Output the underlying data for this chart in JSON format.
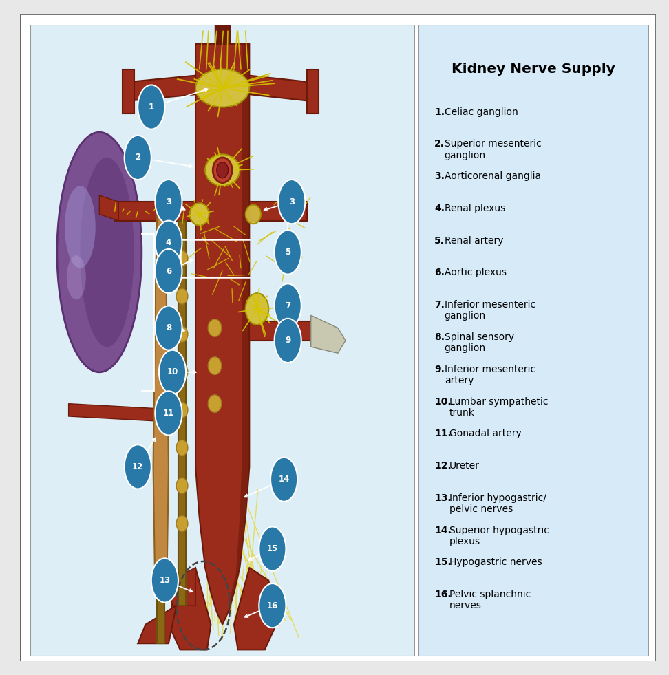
{
  "title": "Kidney Nerve Supply",
  "outer_bg": "#f0f0f0",
  "panel_bg": "#ddeef6",
  "legend_bg": "#d6eaf8",
  "label_circle_color": "#2878a8",
  "legend_items": [
    {
      "num": "1",
      "bold": "1.",
      "text": " Celiac ganglion"
    },
    {
      "num": "2",
      "bold": "2.",
      "text": "  Superior mesenteric\nganglion"
    },
    {
      "num": "3",
      "bold": "3.",
      "text": " Aorticorenal ganglia"
    },
    {
      "num": "4",
      "bold": "4.",
      "text": " Renal plexus"
    },
    {
      "num": "5",
      "bold": "5.",
      "text": " Renal artery"
    },
    {
      "num": "6",
      "bold": "6.",
      "text": " Aortic plexus"
    },
    {
      "num": "7",
      "bold": "7.",
      "text": " Inferior mesenteric\nganglion"
    },
    {
      "num": "8",
      "bold": "8.",
      "text": " Spinal sensory\nganglion"
    },
    {
      "num": "9",
      "bold": "9.",
      "text": " Inferior mesenteric\nartery"
    },
    {
      "num": "10",
      "bold": "10.",
      "text": " Lumbar sympathetic\ntrunk"
    },
    {
      "num": "11",
      "bold": "11.",
      "text": " Gonadal artery"
    },
    {
      "num": "12",
      "bold": "12.",
      "text": " Ureter"
    },
    {
      "num": "13",
      "bold": "13.",
      "text": " Inferior hypogastric/\npelvic nerves"
    },
    {
      "num": "14",
      "bold": "14.",
      "text": " Superior hypogastric\nplexus"
    },
    {
      "num": "15",
      "bold": "15.",
      "text": " Hypogastric nerves"
    },
    {
      "num": "16",
      "bold": "16.",
      "text": " Pelvic splanchnic\nnerves"
    }
  ]
}
